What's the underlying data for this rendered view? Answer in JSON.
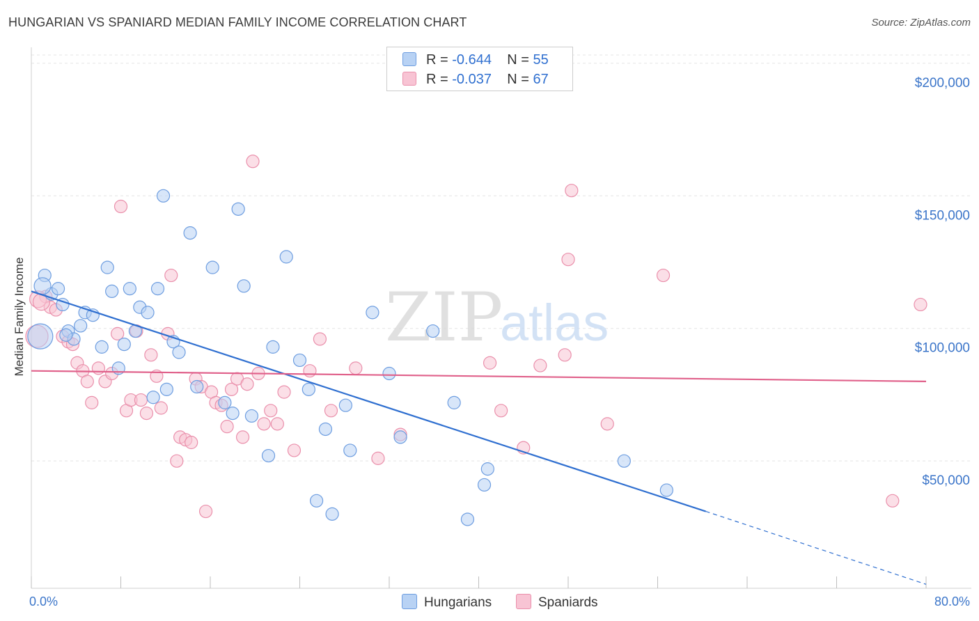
{
  "header": {
    "title": "HUNGARIAN VS SPANIARD MEDIAN FAMILY INCOME CORRELATION CHART",
    "source": "Source: ZipAtlas.com"
  },
  "legend": {
    "rows": [
      {
        "r_label": "R =",
        "r_value": "-0.644",
        "n_label": "N =",
        "n_value": "55"
      },
      {
        "r_label": "R =",
        "r_value": "-0.037",
        "n_label": "N =",
        "n_value": "67"
      }
    ]
  },
  "bottom_legend": {
    "hungarians": "Hungarians",
    "spaniards": "Spaniards"
  },
  "watermark": {
    "zip": "ZIP",
    "atlas": "atlas"
  },
  "chart_data": {
    "type": "scatter",
    "title": "HUNGARIAN VS SPANIARD MEDIAN FAMILY INCOME CORRELATION CHART",
    "ylabel": "Median Family Income",
    "xlim": [
      0,
      80
    ],
    "ylim": [
      2000,
      206000
    ],
    "x_tick_labels": [
      "0.0%",
      "80.0%"
    ],
    "y_ticks": [
      {
        "value": 50000,
        "label": "$50,000"
      },
      {
        "value": 100000,
        "label": "$100,000"
      },
      {
        "value": 150000,
        "label": "$150,000"
      },
      {
        "value": 200000,
        "label": "$200,000"
      }
    ],
    "grid": true,
    "legend_position": "top-center",
    "colors": {
      "hungarians_fill": "#b8d2f4",
      "hungarians_stroke": "#6d9de0",
      "hungarians_line": "#2f6fd0",
      "spaniards_fill": "#f8c4d4",
      "spaniards_stroke": "#ea8fab",
      "spaniards_line": "#e0608a",
      "tick_label": "#3b75c9"
    },
    "series": [
      {
        "name": "Hungarians",
        "trend": {
          "x0": 0,
          "y0": 114000,
          "x1": 60.3,
          "y1": 31000,
          "dash_to_x": 80,
          "dash_to_y": 3500
        },
        "points": [
          [
            1.2,
            120000
          ],
          [
            1.8,
            113000
          ],
          [
            2.4,
            115000
          ],
          [
            2.8,
            109000
          ],
          [
            3.3,
            99000
          ],
          [
            3.8,
            96000
          ],
          [
            4.4,
            101000
          ],
          [
            4.8,
            106000
          ],
          [
            5.5,
            105000
          ],
          [
            6.3,
            93000
          ],
          [
            6.8,
            123000
          ],
          [
            7.2,
            114000
          ],
          [
            7.8,
            85000
          ],
          [
            8.3,
            94000
          ],
          [
            8.8,
            115000
          ],
          [
            9.3,
            99000
          ],
          [
            9.7,
            108000
          ],
          [
            10.4,
            106000
          ],
          [
            10.9,
            74000
          ],
          [
            11.3,
            115000
          ],
          [
            11.8,
            150000
          ],
          [
            12.1,
            77000
          ],
          [
            12.7,
            95000
          ],
          [
            13.2,
            91000
          ],
          [
            14.2,
            136000
          ],
          [
            14.8,
            78000
          ],
          [
            16.2,
            123000
          ],
          [
            17.3,
            72000
          ],
          [
            18.0,
            68000
          ],
          [
            18.5,
            145000
          ],
          [
            19.0,
            116000
          ],
          [
            19.7,
            67000
          ],
          [
            21.2,
            52000
          ],
          [
            21.6,
            93000
          ],
          [
            22.8,
            127000
          ],
          [
            24.0,
            88000
          ],
          [
            24.8,
            77000
          ],
          [
            25.5,
            35000
          ],
          [
            26.3,
            62000
          ],
          [
            26.9,
            30000
          ],
          [
            28.1,
            71000
          ],
          [
            28.5,
            54000
          ],
          [
            30.5,
            106000
          ],
          [
            32.0,
            83000
          ],
          [
            33.0,
            59000
          ],
          [
            35.9,
            99000
          ],
          [
            37.8,
            72000
          ],
          [
            39.0,
            28000
          ],
          [
            40.5,
            41000
          ],
          [
            40.8,
            47000
          ],
          [
            53.0,
            50000
          ],
          [
            56.8,
            39000
          ],
          [
            1.0,
            116000
          ],
          [
            0.8,
            97000
          ],
          [
            3.1,
            97500
          ]
        ]
      },
      {
        "name": "Spaniards",
        "trend": {
          "x0": 0,
          "y0": 84000,
          "x1": 80,
          "y1": 80000
        },
        "points": [
          [
            1.3,
            112000
          ],
          [
            1.7,
            108000
          ],
          [
            2.2,
            107000
          ],
          [
            2.8,
            97000
          ],
          [
            3.3,
            95000
          ],
          [
            3.7,
            94000
          ],
          [
            4.1,
            87000
          ],
          [
            4.6,
            84000
          ],
          [
            5.0,
            80000
          ],
          [
            5.4,
            72000
          ],
          [
            6.0,
            85000
          ],
          [
            6.6,
            80000
          ],
          [
            7.2,
            83000
          ],
          [
            7.7,
            98000
          ],
          [
            8.0,
            146000
          ],
          [
            8.5,
            69000
          ],
          [
            8.9,
            73000
          ],
          [
            9.4,
            99000
          ],
          [
            9.8,
            73000
          ],
          [
            10.3,
            68000
          ],
          [
            10.7,
            90000
          ],
          [
            11.2,
            82000
          ],
          [
            11.6,
            70000
          ],
          [
            12.2,
            98000
          ],
          [
            12.5,
            120000
          ],
          [
            13.0,
            50000
          ],
          [
            13.3,
            59000
          ],
          [
            13.8,
            58000
          ],
          [
            14.3,
            57000
          ],
          [
            14.7,
            81000
          ],
          [
            15.2,
            78000
          ],
          [
            15.6,
            31000
          ],
          [
            16.1,
            76000
          ],
          [
            16.5,
            72000
          ],
          [
            17.0,
            71000
          ],
          [
            17.5,
            63000
          ],
          [
            17.9,
            77000
          ],
          [
            18.4,
            81000
          ],
          [
            18.9,
            59000
          ],
          [
            19.3,
            79000
          ],
          [
            19.8,
            163000
          ],
          [
            20.3,
            83000
          ],
          [
            20.8,
            64000
          ],
          [
            21.4,
            69000
          ],
          [
            22.0,
            64000
          ],
          [
            22.6,
            76000
          ],
          [
            23.5,
            54000
          ],
          [
            24.9,
            84000
          ],
          [
            25.8,
            96000
          ],
          [
            26.8,
            69000
          ],
          [
            29.0,
            85000
          ],
          [
            31.0,
            51000
          ],
          [
            33.0,
            60000
          ],
          [
            41.0,
            87000
          ],
          [
            42.0,
            69000
          ],
          [
            44.0,
            55000
          ],
          [
            45.5,
            86000
          ],
          [
            47.7,
            90000
          ],
          [
            48.0,
            126000
          ],
          [
            48.3,
            152000
          ],
          [
            51.5,
            64000
          ],
          [
            56.5,
            120000
          ],
          [
            77.0,
            35000
          ],
          [
            79.5,
            109000
          ],
          [
            0.6,
            111000
          ],
          [
            0.9,
            110000
          ],
          [
            0.5,
            97000
          ]
        ]
      }
    ]
  }
}
